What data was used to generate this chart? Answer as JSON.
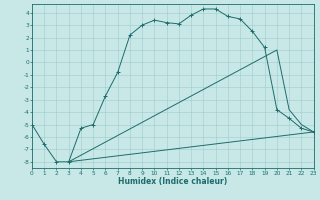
{
  "xlabel": "Humidex (Indice chaleur)",
  "xlim": [
    0,
    23
  ],
  "ylim": [
    -8.5,
    4.7
  ],
  "xtick_vals": [
    0,
    1,
    2,
    3,
    4,
    5,
    6,
    7,
    8,
    9,
    10,
    11,
    12,
    13,
    14,
    15,
    16,
    17,
    18,
    19,
    20,
    21,
    22,
    23
  ],
  "ytick_vals": [
    4,
    3,
    2,
    1,
    0,
    -1,
    -2,
    -3,
    -4,
    -5,
    -6,
    -7,
    -8
  ],
  "bg_color": "#c8e8e8",
  "grid_color": "#a0cccc",
  "line_color": "#1e6b6b",
  "curve1_x": [
    0,
    1,
    2,
    3,
    4,
    5,
    6,
    7,
    8,
    9,
    10,
    11,
    12,
    13,
    14,
    15,
    16,
    17,
    18,
    19,
    20,
    21,
    22,
    23
  ],
  "curve1_y": [
    -5.0,
    -6.6,
    -8.0,
    -8.0,
    -5.3,
    -5.0,
    -2.7,
    -0.8,
    2.2,
    3.0,
    3.4,
    3.2,
    3.1,
    3.8,
    4.3,
    4.3,
    3.7,
    3.5,
    2.5,
    1.2,
    -3.8,
    -4.5,
    -5.3,
    -5.6
  ],
  "curve2_x": [
    3,
    23
  ],
  "curve2_y": [
    -8.0,
    -5.6
  ],
  "curve3_x": [
    3,
    20,
    21,
    22,
    23
  ],
  "curve3_y": [
    -8.0,
    1.0,
    -3.8,
    -5.0,
    -5.6
  ],
  "marker_color": "#1e6b6b"
}
